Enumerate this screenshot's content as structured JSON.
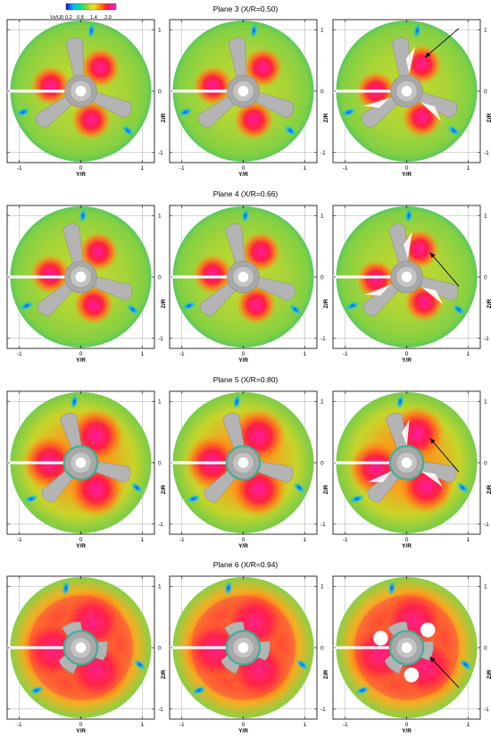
{
  "colorbar": {
    "label": "Vx/U0",
    "ticks": [
      "0.2",
      "0.8",
      "1.4",
      "2.0"
    ],
    "colors": [
      "#1010c8",
      "#00b8ff",
      "#00e090",
      "#9cd82c",
      "#f0e020",
      "#ff7a10",
      "#ff1830",
      "#ff1aa0",
      "#c040ff"
    ]
  },
  "panel_axes": {
    "y_ticks": [
      "-1",
      "0",
      "1"
    ],
    "z_ticks": [
      "1",
      "0",
      "-1"
    ],
    "y_label": "Y/R",
    "z_label": "Z/R"
  },
  "rows": [
    {
      "title": "Plane 3 (X/R=0.50)",
      "field": "moderate",
      "blade_scale": 1.0
    },
    {
      "title": "Plane 4 (X/R=0.66)",
      "field": "moderate",
      "blade_scale": 1.0
    },
    {
      "title": "Plane 5 (X/R=0.80)",
      "field": "strong",
      "blade_scale": 0.95
    },
    {
      "title": "Plane 6 (X/R=0.94)",
      "field": "full",
      "blade_scale": 0.62
    }
  ],
  "arrow_column": 2,
  "icons": {
    "blade": "propeller-blade-icon",
    "hub": "propeller-hub-icon",
    "arrow": "annotation-arrow-icon"
  }
}
